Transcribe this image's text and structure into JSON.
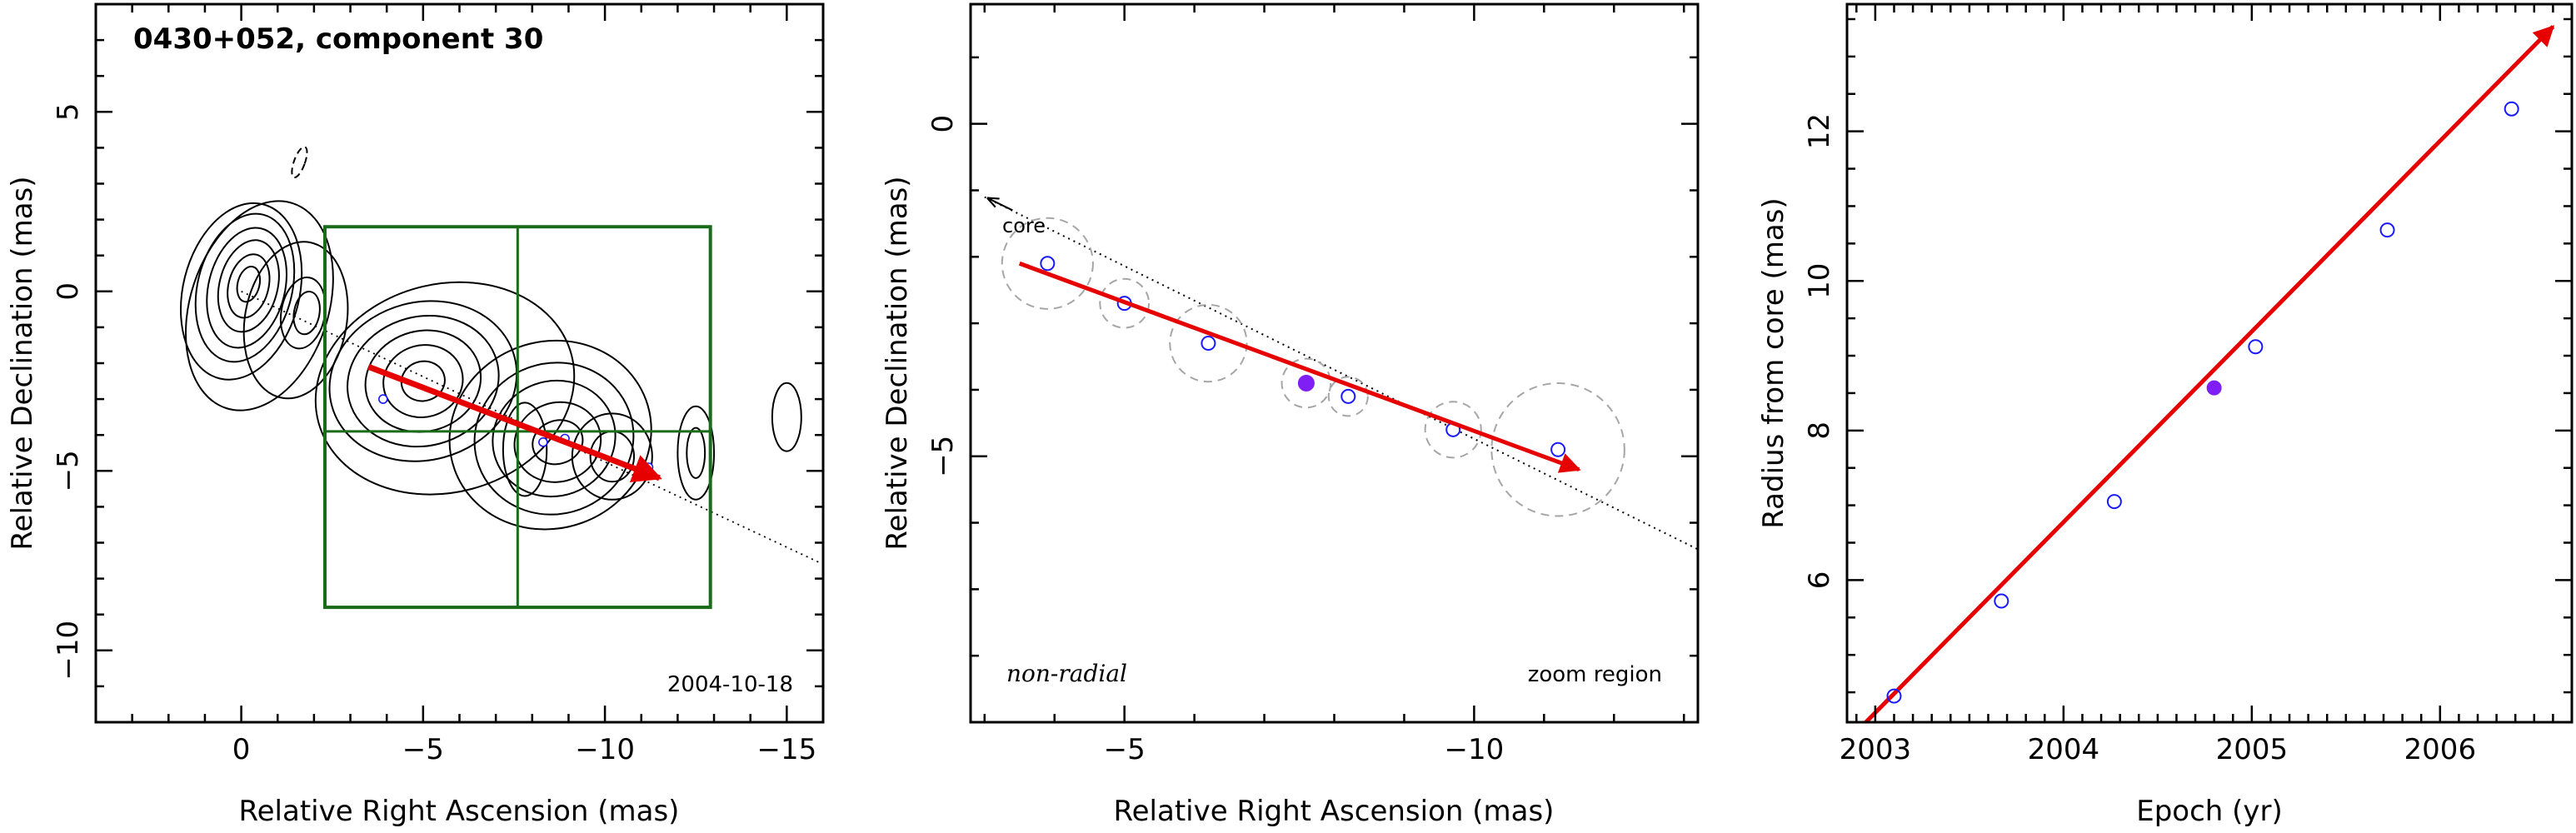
{
  "colors": {
    "vector": "#e60000",
    "point_open": "#1a1aff",
    "point_filled": "#7f1ff5",
    "box": "#1a6b1a",
    "error_circle": "#a6a6a6",
    "contour": "#000000"
  },
  "chart_data": [
    {
      "type": "contour",
      "title": "0430+052, component 30",
      "xlabel": "Relative Right Ascension (mas)",
      "ylabel": "Relative Declination (mas)",
      "xlim": [
        4,
        -16
      ],
      "ylim": [
        -12,
        8
      ],
      "xticks": [
        0,
        -5,
        -10,
        -15
      ],
      "xtick_labels": [
        "0",
        "−5",
        "−10",
        "−15"
      ],
      "yticks": [
        5,
        0,
        -5,
        -10
      ],
      "ytick_labels": [
        "5",
        "0",
        "−5",
        "−10"
      ],
      "date_label": "2004-10-18",
      "zoom_box": {
        "x": [
          -2.3,
          -12.9
        ],
        "y": [
          1.8,
          -8.8
        ]
      },
      "crosshair": {
        "x": -7.6,
        "y": -3.9
      },
      "velocity_vector": {
        "from": [
          -3.5,
          -2.1
        ],
        "to": [
          -11.5,
          -5.2
        ]
      },
      "core_line": {
        "from": [
          0,
          0
        ],
        "to": [
          -16,
          -7.6
        ]
      },
      "points": [
        {
          "x": -11.2,
          "y": -4.9
        },
        {
          "x": -8.9,
          "y": -4.1
        },
        {
          "x": -8.3,
          "y": -4.2
        },
        {
          "x": -3.9,
          "y": -3.0
        }
      ],
      "contours": [
        {
          "cx": 0,
          "cy": 0,
          "rx": 1.6,
          "ry": 2.5,
          "rot": 14
        },
        {
          "cx": -0.1,
          "cy": 0.1,
          "rx": 1.3,
          "ry": 2.1,
          "rot": 14
        },
        {
          "cx": -0.15,
          "cy": 0.1,
          "rx": 1.05,
          "ry": 1.7,
          "rot": 14
        },
        {
          "cx": -0.2,
          "cy": 0.15,
          "rx": 0.8,
          "ry": 1.3,
          "rot": 14
        },
        {
          "cx": -0.2,
          "cy": 0.15,
          "rx": 0.55,
          "ry": 0.9,
          "rot": 14
        },
        {
          "cx": -0.2,
          "cy": 0.2,
          "rx": 0.3,
          "ry": 0.5,
          "rot": 14
        },
        {
          "cx": -0.5,
          "cy": -0.4,
          "rx": 1.9,
          "ry": 3.0,
          "rot": 18
        },
        {
          "cx": -1.7,
          "cy": -0.6,
          "rx": 0.6,
          "ry": 1.0,
          "rot": 10
        },
        {
          "cx": -1.8,
          "cy": -0.6,
          "rx": 0.35,
          "ry": 0.6,
          "rot": 10
        },
        {
          "cx": -1.5,
          "cy": -0.8,
          "rx": 1.4,
          "ry": 2.2,
          "rot": 10
        },
        {
          "cx": -5.0,
          "cy": -2.5,
          "rx": 2.6,
          "ry": 2.2,
          "rot": -15
        },
        {
          "cx": -5.0,
          "cy": -2.5,
          "rx": 2.1,
          "ry": 1.8,
          "rot": -15
        },
        {
          "cx": -5.0,
          "cy": -2.5,
          "rx": 1.6,
          "ry": 1.4,
          "rot": -15
        },
        {
          "cx": -5.0,
          "cy": -2.5,
          "rx": 1.1,
          "ry": 1.0,
          "rot": -15
        },
        {
          "cx": -5.0,
          "cy": -2.5,
          "rx": 0.6,
          "ry": 0.55,
          "rot": -15
        },
        {
          "cx": -5.6,
          "cy": -2.7,
          "rx": 3.6,
          "ry": 2.9,
          "rot": -15
        },
        {
          "cx": -8.5,
          "cy": -4.0,
          "rx": 2.8,
          "ry": 2.6,
          "rot": -20
        },
        {
          "cx": -8.6,
          "cy": -4.1,
          "rx": 2.2,
          "ry": 2.1,
          "rot": -20
        },
        {
          "cx": -8.6,
          "cy": -4.1,
          "rx": 1.7,
          "ry": 1.6,
          "rot": -20
        },
        {
          "cx": -8.7,
          "cy": -4.2,
          "rx": 1.2,
          "ry": 1.1,
          "rot": -20
        },
        {
          "cx": -8.7,
          "cy": -4.2,
          "rx": 0.7,
          "ry": 0.6,
          "rot": -20
        },
        {
          "cx": -7.8,
          "cy": -4.4,
          "rx": 0.6,
          "ry": 1.3,
          "rot": 0
        },
        {
          "cx": -10.2,
          "cy": -4.6,
          "rx": 1.1,
          "ry": 1.2,
          "rot": 0
        },
        {
          "cx": -10.2,
          "cy": -4.6,
          "rx": 0.6,
          "ry": 0.7,
          "rot": 0
        },
        {
          "cx": -12.5,
          "cy": -4.5,
          "rx": 0.5,
          "ry": 1.3,
          "rot": 0
        },
        {
          "cx": -12.5,
          "cy": -4.5,
          "rx": 0.25,
          "ry": 0.7,
          "rot": 0
        },
        {
          "cx": -15.0,
          "cy": -3.5,
          "rx": 0.4,
          "ry": 0.95,
          "rot": 0
        },
        {
          "cx": -1.6,
          "cy": 3.6,
          "rx": 0.15,
          "ry": 0.45,
          "rot": 20,
          "dashed": true
        }
      ]
    },
    {
      "type": "scatter",
      "xlabel": "Relative Right Ascension (mas)",
      "ylabel": "Relative Declination (mas)",
      "xlim": [
        -2.8,
        -13.2
      ],
      "ylim": [
        -9,
        1.8
      ],
      "xticks": [
        -5,
        -10
      ],
      "xtick_labels": [
        "−5",
        "−10"
      ],
      "yticks": [
        0,
        -5
      ],
      "ytick_labels": [
        "0",
        "−5"
      ],
      "left_label": "non-radial",
      "right_label": "zoom region",
      "core_label": "core",
      "velocity_vector": {
        "from": [
          -3.5,
          -2.1
        ],
        "to": [
          -11.5,
          -5.2
        ]
      },
      "core_line": {
        "from": [
          -3.0,
          -1.1
        ],
        "to": [
          -13.2,
          -6.4
        ]
      },
      "points": [
        {
          "x": -3.9,
          "y": -2.1,
          "r": 0.65,
          "filled": false
        },
        {
          "x": -5.0,
          "y": -2.7,
          "r": 0.35,
          "filled": false
        },
        {
          "x": -6.2,
          "y": -3.3,
          "r": 0.55,
          "filled": false
        },
        {
          "x": -7.6,
          "y": -3.9,
          "r": 0.35,
          "filled": true
        },
        {
          "x": -8.2,
          "y": -4.1,
          "r": 0.28,
          "filled": false
        },
        {
          "x": -9.7,
          "y": -4.6,
          "r": 0.4,
          "filled": false
        },
        {
          "x": -11.2,
          "y": -4.9,
          "r": 0.95,
          "filled": false
        }
      ]
    },
    {
      "type": "scatter",
      "xlabel": "Epoch (yr)",
      "ylabel": "Radius from core (mas)",
      "xlim": [
        2002.85,
        2006.7
      ],
      "ylim": [
        4.1,
        13.7
      ],
      "xticks": [
        2003,
        2004,
        2005,
        2006
      ],
      "xtick_labels": [
        "2003",
        "2004",
        "2005",
        "2006"
      ],
      "yticks": [
        6,
        8,
        10,
        12
      ],
      "ytick_labels": [
        "6",
        "8",
        "10",
        "12"
      ],
      "fit_line": {
        "from": [
          2002.95,
          4.1
        ],
        "to": [
          2006.6,
          13.4
        ]
      },
      "points": [
        {
          "x": 2003.1,
          "y": 4.45,
          "filled": false
        },
        {
          "x": 2003.67,
          "y": 5.72,
          "filled": false
        },
        {
          "x": 2004.27,
          "y": 7.05,
          "filled": false
        },
        {
          "x": 2004.8,
          "y": 8.57,
          "filled": true
        },
        {
          "x": 2005.02,
          "y": 9.12,
          "filled": false
        },
        {
          "x": 2005.72,
          "y": 10.68,
          "filled": false
        },
        {
          "x": 2006.38,
          "y": 12.3,
          "filled": false
        }
      ]
    }
  ]
}
